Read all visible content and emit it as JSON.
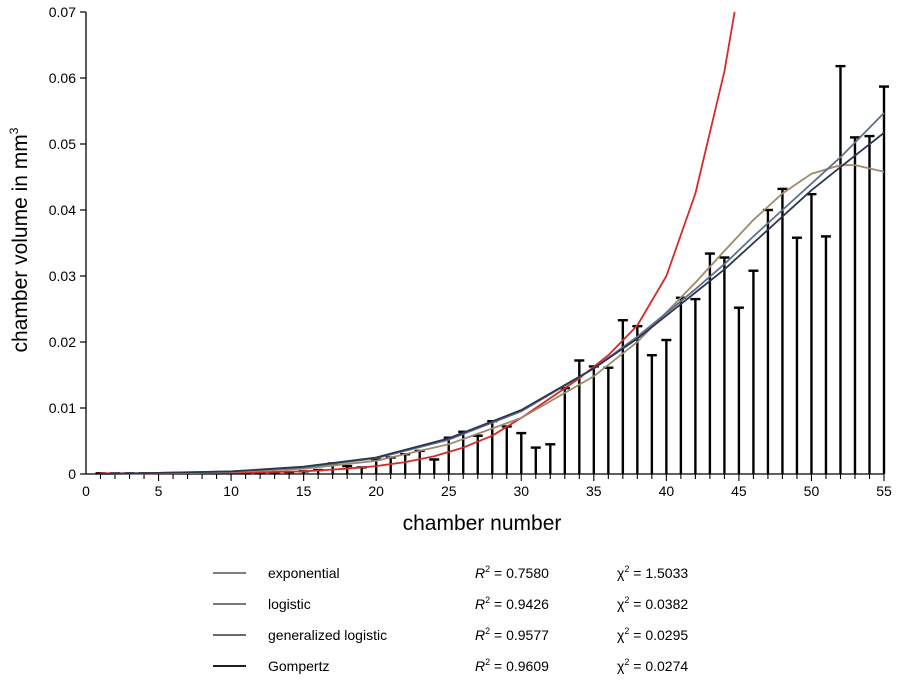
{
  "chart_data": {
    "type": "bar",
    "title": "",
    "xlabel": "chamber number",
    "ylabel": "chamber volume in mm",
    "ylabel_superscript": "3",
    "xlim": [
      0,
      55
    ],
    "ylim": [
      0,
      0.07
    ],
    "x_ticks": [
      0,
      5,
      10,
      15,
      20,
      25,
      30,
      35,
      40,
      45,
      50,
      55
    ],
    "y_ticks": [
      0,
      0.01,
      0.02,
      0.03,
      0.04,
      0.05,
      0.06,
      0.07
    ],
    "x_tick_labels": [
      "0",
      "5",
      "10",
      "15",
      "20",
      "25",
      "30",
      "35",
      "40",
      "45",
      "50",
      "55"
    ],
    "y_tick_labels": [
      "0",
      "0.01",
      "0.02",
      "0.03",
      "0.04",
      "0.05",
      "0.06",
      "0.07"
    ],
    "grid": false,
    "legend_position": "bottom",
    "categories": [
      1,
      2,
      3,
      4,
      5,
      6,
      7,
      8,
      9,
      10,
      11,
      12,
      13,
      14,
      15,
      16,
      17,
      18,
      19,
      20,
      21,
      22,
      23,
      24,
      25,
      26,
      27,
      28,
      29,
      30,
      31,
      32,
      33,
      34,
      35,
      36,
      37,
      38,
      39,
      40,
      41,
      42,
      43,
      44,
      45,
      46,
      47,
      48,
      49,
      50,
      51,
      52,
      53,
      54,
      55
    ],
    "values": [
      0.0001,
      0.0001,
      0.0001,
      0.0001,
      0.0001,
      0.0001,
      0.0001,
      0.0001,
      0.0001,
      0.0001,
      0.0001,
      0.0002,
      0.0002,
      0.0003,
      0.0004,
      0.0006,
      0.0016,
      0.0012,
      0.001,
      0.0022,
      0.0025,
      0.003,
      0.0035,
      0.0022,
      0.0055,
      0.0064,
      0.0058,
      0.008,
      0.0072,
      0.0062,
      0.004,
      0.0045,
      0.013,
      0.0172,
      0.0163,
      0.0161,
      0.0233,
      0.0224,
      0.018,
      0.0203,
      0.0267,
      0.0265,
      0.0334,
      0.0328,
      0.0252,
      0.0308,
      0.04,
      0.0432,
      0.0358,
      0.0424,
      0.036,
      0.0618,
      0.051,
      0.0512,
      0.0587
    ],
    "series": [
      {
        "name": "exponential",
        "color": "#d42a2a",
        "x": [
          1,
          5,
          10,
          15,
          18,
          20,
          22,
          24,
          26,
          28,
          30,
          32,
          34,
          36,
          38,
          40,
          42,
          44,
          44.7
        ],
        "y": [
          0.0001,
          0.0001,
          0.0002,
          0.0004,
          0.0008,
          0.0012,
          0.0018,
          0.0027,
          0.004,
          0.0058,
          0.0085,
          0.0115,
          0.0145,
          0.018,
          0.0225,
          0.03,
          0.0425,
          0.061,
          0.07
        ]
      },
      {
        "name": "logistic",
        "color": "#a08a6c",
        "x": [
          1,
          10,
          15,
          20,
          25,
          30,
          35,
          38,
          40,
          42,
          44,
          46,
          48,
          50,
          52,
          53,
          55
        ],
        "y": [
          0.0,
          0.0003,
          0.0008,
          0.002,
          0.0045,
          0.0085,
          0.0148,
          0.02,
          0.0245,
          0.029,
          0.0338,
          0.0385,
          0.0425,
          0.0455,
          0.0468,
          0.0468,
          0.0458
        ]
      },
      {
        "name": "generalized logistic",
        "color": "#5f7189",
        "x": [
          1,
          10,
          15,
          20,
          25,
          30,
          35,
          38,
          40,
          42,
          44,
          46,
          48,
          50,
          52,
          55
        ],
        "y": [
          0.0,
          0.0004,
          0.001,
          0.0024,
          0.0052,
          0.0095,
          0.016,
          0.0208,
          0.0244,
          0.028,
          0.0318,
          0.036,
          0.04,
          0.044,
          0.048,
          0.0547
        ]
      },
      {
        "name": "Gompertz",
        "color": "#2c3650",
        "x": [
          1,
          10,
          15,
          20,
          25,
          30,
          35,
          38,
          40,
          42,
          44,
          46,
          48,
          50,
          52,
          55
        ],
        "y": [
          0.0,
          0.0004,
          0.0011,
          0.0025,
          0.0054,
          0.0097,
          0.016,
          0.0205,
          0.024,
          0.0275,
          0.031,
          0.035,
          0.039,
          0.043,
          0.0465,
          0.0517
        ]
      }
    ],
    "legend": [
      {
        "name": "exponential",
        "r2_label": "R",
        "r2_sup": "2",
        "r2_value": " = 0.7580",
        "chi_label": "χ",
        "chi_sup": "2",
        "chi_value": " = 1.5033",
        "swatch": "#6c6c6c"
      },
      {
        "name": "logistic",
        "r2_label": "R",
        "r2_sup": "2",
        "r2_value": " = 0.9426",
        "chi_label": "χ",
        "chi_sup": "2",
        "chi_value": " = 0.0382",
        "swatch": "#666666"
      },
      {
        "name": "generalized logistic",
        "r2_label": "R",
        "r2_sup": "2",
        "r2_value": " = 0.9577",
        "chi_label": "χ",
        "chi_sup": "2",
        "chi_value": " = 0.0295",
        "swatch": "#555555"
      },
      {
        "name": "Gompertz",
        "r2_label": "R",
        "r2_sup": "2",
        "r2_value": " = 0.9609",
        "chi_label": "χ",
        "chi_sup": "2",
        "chi_value": " = 0.0274",
        "swatch": "#000000"
      }
    ]
  }
}
